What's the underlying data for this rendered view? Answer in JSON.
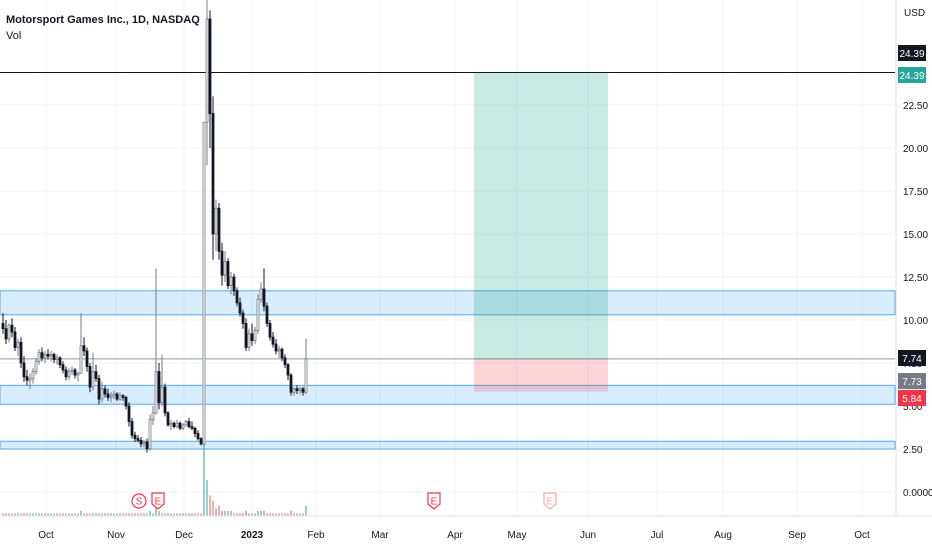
{
  "legend": {
    "title": "Motorsport Games Inc., 1D, NASDAQ",
    "vol_label": "Vol"
  },
  "currency": "USD",
  "chart_data": {
    "type": "candlestick",
    "yticks": [
      0.0,
      2.5,
      5.0,
      7.5,
      10.0,
      12.5,
      15.0,
      17.5,
      20.0,
      22.5
    ],
    "ytick_labels": [
      "0.0000",
      "2.50",
      "5.00",
      "7.50",
      "10.00",
      "12.50",
      "15.00",
      "17.50",
      "20.00",
      "22.50"
    ],
    "ylim": [
      -0.8,
      25.9
    ],
    "x_labels": [
      "Oct",
      "Nov",
      "Dec",
      "2023",
      "Feb",
      "Mar",
      "Apr",
      "May",
      "Jun",
      "Jul",
      "Aug",
      "Sep",
      "Oct"
    ],
    "price_tags": [
      {
        "value": 24.39,
        "label": "24.39",
        "color": "#131722"
      },
      {
        "value": 24.39,
        "label": "24.39",
        "color": "#26a69a"
      },
      {
        "value": 7.74,
        "label": "7.74",
        "color": "#131722"
      },
      {
        "value": 7.73,
        "label": "7.73",
        "color": "#787b86"
      },
      {
        "value": 5.84,
        "label": "5.84",
        "color": "#f23645"
      }
    ],
    "horizontal_lines": [
      24.39,
      7.74
    ],
    "zones": [
      {
        "low": 10.3,
        "high": 11.7
      },
      {
        "low": 5.1,
        "high": 6.2
      },
      {
        "low": 2.5,
        "high": 2.95
      }
    ],
    "position": {
      "entry": 7.74,
      "target": 24.39,
      "stop": 5.84
    },
    "events": [
      {
        "label": "S",
        "type": "split"
      },
      {
        "label": "E",
        "type": "earnings"
      },
      {
        "label": "E",
        "type": "earnings"
      },
      {
        "label": "E",
        "type": "earnings-upcoming"
      }
    ],
    "candles": [
      [
        9.8,
        10.4,
        9.2,
        9.5
      ],
      [
        9.5,
        10.0,
        8.6,
        8.9
      ],
      [
        8.9,
        9.8,
        8.7,
        9.7
      ],
      [
        9.7,
        10.1,
        9.0,
        9.3
      ],
      [
        9.3,
        9.6,
        8.2,
        8.4
      ],
      [
        8.4,
        8.9,
        7.9,
        8.7
      ],
      [
        8.7,
        9.0,
        7.2,
        7.5
      ],
      [
        7.5,
        7.9,
        6.4,
        6.7
      ],
      [
        6.7,
        7.1,
        6.2,
        6.5
      ],
      [
        6.5,
        6.9,
        6.0,
        6.6
      ],
      [
        6.6,
        7.2,
        6.3,
        7.0
      ],
      [
        7.0,
        7.8,
        6.8,
        7.6
      ],
      [
        7.6,
        8.3,
        7.4,
        8.1
      ],
      [
        8.1,
        8.4,
        7.6,
        7.8
      ],
      [
        7.8,
        8.2,
        7.5,
        8.0
      ],
      [
        8.0,
        8.3,
        7.7,
        7.9
      ],
      [
        7.9,
        8.2,
        7.6,
        8.0
      ],
      [
        8.0,
        8.1,
        7.5,
        7.7
      ],
      [
        7.7,
        8.0,
        7.4,
        7.8
      ],
      [
        7.8,
        7.9,
        7.2,
        7.4
      ],
      [
        7.4,
        7.6,
        6.9,
        7.1
      ],
      [
        7.1,
        7.3,
        6.5,
        6.7
      ],
      [
        6.7,
        7.2,
        6.5,
        7.0
      ],
      [
        7.0,
        7.3,
        6.8,
        7.1
      ],
      [
        7.1,
        7.2,
        6.6,
        6.8
      ],
      [
        6.8,
        7.0,
        6.4,
        6.9
      ],
      [
        6.9,
        10.4,
        6.9,
        8.5
      ],
      [
        8.5,
        9.0,
        7.9,
        8.2
      ],
      [
        8.2,
        8.4,
        7.0,
        7.3
      ],
      [
        7.3,
        7.5,
        5.8,
        6.1
      ],
      [
        6.1,
        8.1,
        5.9,
        7.0
      ],
      [
        7.0,
        7.4,
        6.4,
        6.6
      ],
      [
        6.6,
        6.8,
        5.1,
        5.4
      ],
      [
        5.4,
        6.4,
        5.2,
        6.0
      ],
      [
        6.0,
        6.2,
        5.5,
        5.7
      ],
      [
        5.7,
        6.0,
        5.3,
        5.5
      ],
      [
        5.5,
        5.8,
        5.2,
        5.6
      ],
      [
        5.6,
        5.9,
        5.4,
        5.7
      ],
      [
        5.7,
        5.8,
        5.3,
        5.4
      ],
      [
        5.4,
        5.8,
        5.3,
        5.6
      ],
      [
        5.6,
        5.7,
        5.3,
        5.5
      ],
      [
        5.5,
        5.6,
        4.8,
        5.0
      ],
      [
        5.0,
        5.2,
        3.8,
        4.1
      ],
      [
        4.1,
        4.3,
        3.1,
        3.3
      ],
      [
        3.3,
        3.5,
        2.9,
        3.1
      ],
      [
        3.1,
        3.3,
        2.9,
        3.0
      ],
      [
        3.0,
        3.2,
        2.6,
        2.8
      ],
      [
        2.8,
        3.0,
        2.6,
        2.9
      ],
      [
        2.9,
        3.1,
        2.3,
        2.5
      ],
      [
        2.5,
        4.5,
        2.4,
        4.2
      ],
      [
        4.2,
        5.0,
        3.9,
        4.6
      ],
      [
        4.6,
        13.0,
        4.5,
        7.0
      ],
      [
        7.0,
        7.5,
        4.8,
        5.2
      ],
      [
        5.2,
        8.0,
        5.0,
        6.1
      ],
      [
        6.1,
        6.3,
        4.4,
        4.6
      ],
      [
        4.6,
        4.7,
        3.8,
        3.9
      ],
      [
        3.9,
        4.2,
        3.6,
        4.0
      ],
      [
        4.0,
        4.1,
        3.7,
        3.8
      ],
      [
        3.8,
        4.2,
        3.7,
        4.0
      ],
      [
        4.0,
        4.1,
        3.6,
        3.7
      ],
      [
        3.7,
        4.0,
        3.6,
        3.9
      ],
      [
        3.9,
        4.2,
        3.8,
        4.1
      ],
      [
        4.1,
        4.3,
        3.7,
        3.8
      ],
      [
        3.8,
        4.1,
        3.6,
        3.7
      ],
      [
        3.7,
        3.8,
        3.2,
        3.4
      ],
      [
        3.4,
        3.6,
        3.0,
        3.1
      ],
      [
        3.1,
        3.2,
        2.7,
        2.8
      ],
      [
        2.8,
        21.5,
        2.7,
        21.5
      ],
      [
        21.5,
        29.0,
        19.0,
        27.5
      ],
      [
        27.5,
        28.0,
        20.0,
        22.0
      ],
      [
        22.0,
        23.0,
        13.5,
        15.0
      ],
      [
        15.0,
        17.0,
        14.0,
        16.5
      ],
      [
        16.5,
        16.8,
        13.5,
        14.0
      ],
      [
        14.0,
        14.5,
        12.0,
        12.6
      ],
      [
        12.6,
        14.0,
        12.2,
        13.4
      ],
      [
        13.4,
        13.6,
        11.8,
        12.0
      ],
      [
        12.0,
        12.8,
        11.5,
        12.5
      ],
      [
        12.5,
        12.7,
        11.4,
        11.7
      ],
      [
        11.7,
        11.9,
        10.8,
        11.0
      ],
      [
        11.0,
        11.3,
        10.2,
        10.4
      ],
      [
        10.4,
        10.6,
        9.5,
        9.8
      ],
      [
        9.8,
        10.1,
        8.2,
        8.4
      ],
      [
        8.4,
        9.5,
        8.2,
        9.2
      ],
      [
        9.2,
        9.8,
        8.5,
        8.8
      ],
      [
        8.8,
        9.6,
        8.6,
        9.4
      ],
      [
        9.4,
        11.5,
        9.2,
        11.2
      ],
      [
        11.2,
        12.2,
        11.0,
        11.8
      ],
      [
        11.8,
        13.0,
        10.5,
        10.8
      ],
      [
        10.8,
        11.0,
        9.6,
        9.8
      ],
      [
        9.8,
        10.0,
        8.8,
        9.0
      ],
      [
        9.0,
        9.3,
        8.4,
        8.6
      ],
      [
        8.6,
        8.9,
        8.0,
        8.2
      ],
      [
        8.2,
        8.5,
        7.8,
        8.3
      ],
      [
        8.3,
        8.4,
        7.6,
        7.8
      ],
      [
        7.8,
        8.0,
        7.2,
        7.4
      ],
      [
        7.4,
        7.5,
        6.5,
        6.8
      ],
      [
        6.8,
        6.9,
        5.6,
        5.8
      ],
      [
        5.8,
        6.1,
        5.6,
        6.0
      ],
      [
        6.0,
        6.2,
        5.7,
        5.9
      ],
      [
        5.9,
        6.1,
        5.7,
        6.0
      ],
      [
        6.0,
        6.1,
        5.6,
        5.8
      ],
      [
        5.8,
        8.9,
        5.7,
        7.73
      ]
    ],
    "volume": [
      1,
      1,
      1,
      1,
      1,
      1,
      1,
      1,
      1,
      1,
      1,
      1,
      1,
      1,
      1,
      1,
      1,
      1,
      1,
      1,
      1,
      1,
      1,
      1,
      1,
      1,
      2,
      1,
      1,
      1,
      1,
      1,
      1,
      1,
      1,
      1,
      1,
      1,
      1,
      1,
      1,
      1,
      1,
      1,
      1,
      1,
      1,
      1,
      1,
      2,
      1,
      4,
      2,
      1,
      1,
      1,
      1,
      1,
      1,
      1,
      1,
      1,
      1,
      1,
      1,
      1,
      1,
      28,
      14,
      8,
      6,
      3,
      4,
      2,
      2,
      2,
      2,
      1,
      1,
      1,
      1,
      2,
      1,
      1,
      1,
      2,
      2,
      2,
      1,
      1,
      1,
      1,
      1,
      1,
      1,
      1,
      2,
      1,
      1,
      1,
      1,
      4
    ]
  }
}
